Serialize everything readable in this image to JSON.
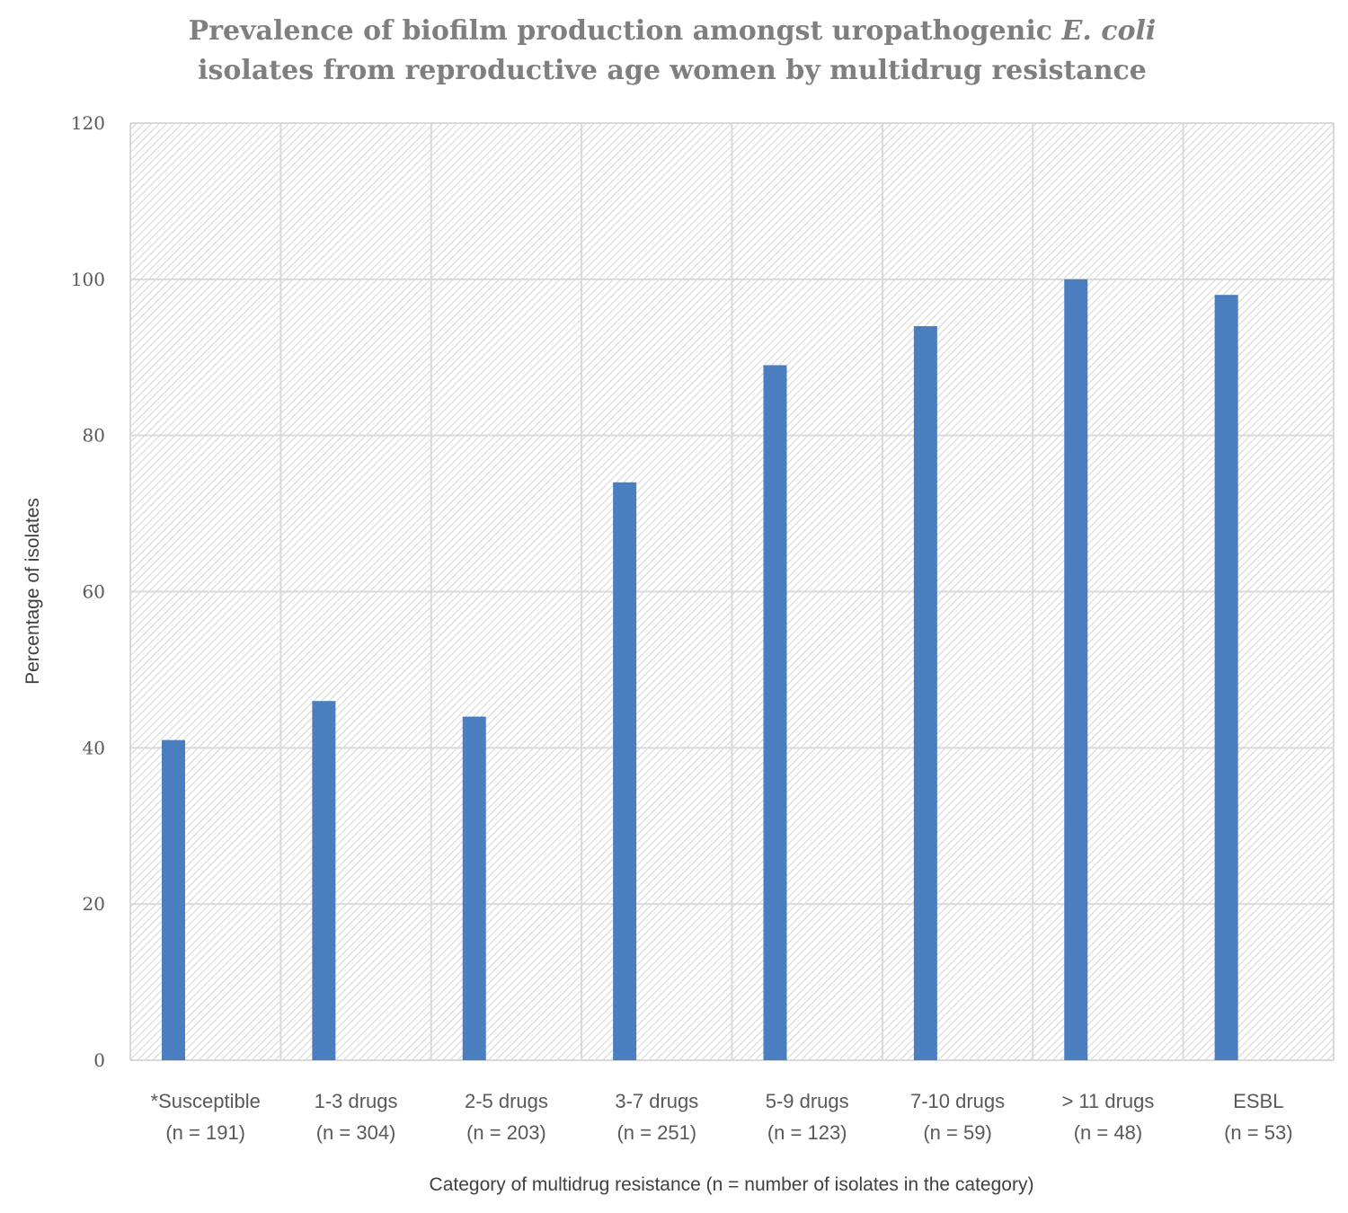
{
  "chart_data": {
    "type": "bar",
    "title_line1": "Prevalence of biofilm production amongst uropathogenic",
    "title_italic": "E. coli",
    "title_line2": "isolates from reproductive age women by multidrug resistance",
    "xlabel": "Category of multidrug resistance (n = number of isolates in the category)",
    "ylabel": "Percentage of isolates",
    "ylim": [
      0,
      120
    ],
    "yticks": [
      0,
      20,
      40,
      60,
      80,
      100,
      120
    ],
    "grid": true,
    "categories": [
      {
        "label": "*Susceptible",
        "n_label": "(n = 191)"
      },
      {
        "label": "1-3 drugs",
        "n_label": "(n = 304)"
      },
      {
        "label": "2-5 drugs",
        "n_label": "(n = 203)"
      },
      {
        "label": "3-7 drugs",
        "n_label": "(n = 251)"
      },
      {
        "label": "5-9 drugs",
        "n_label": "(n = 123)"
      },
      {
        "label": "7-10 drugs",
        "n_label": "(n = 59)"
      },
      {
        "label": "> 11 drugs",
        "n_label": "(n = 48)"
      },
      {
        "label": "ESBL",
        "n_label": "(n = 53)"
      }
    ],
    "values": [
      41,
      46,
      44,
      74,
      89,
      94,
      100,
      98
    ],
    "bar_color": "#4a7ebf",
    "grid_color": "#d9d9d9"
  }
}
